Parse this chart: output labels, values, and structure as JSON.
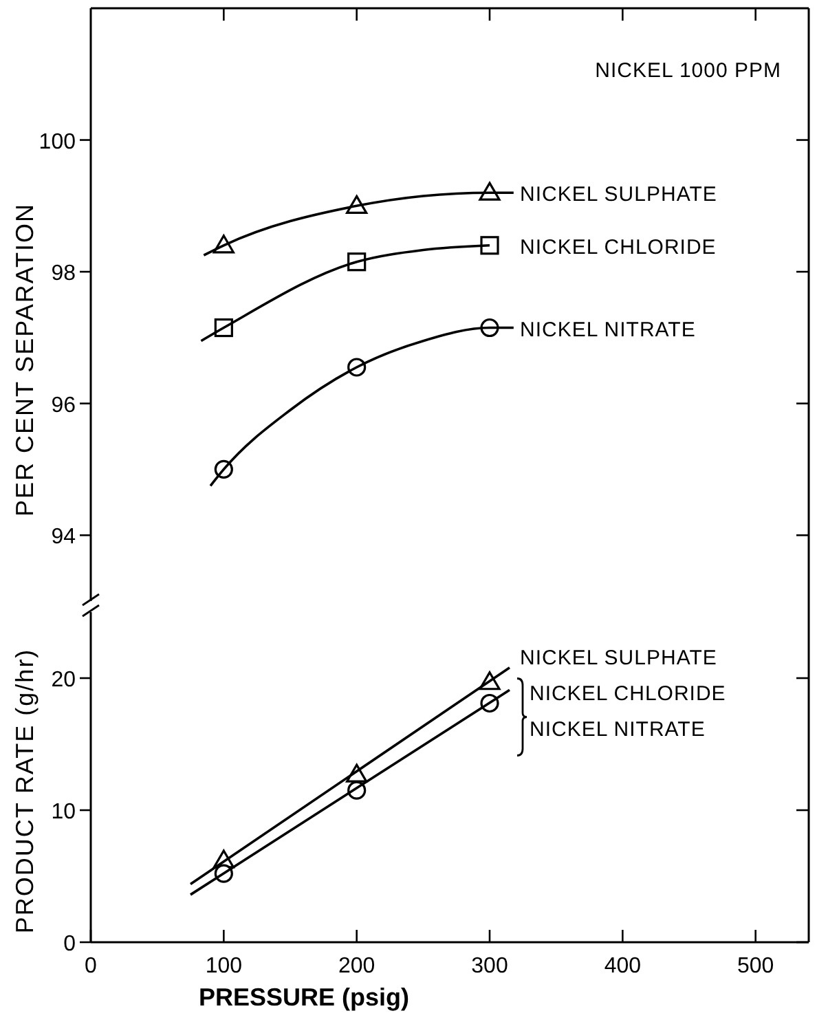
{
  "chart_data": [
    {
      "type": "line",
      "ylabel": "PER CENT SEPARATION",
      "annotations": [
        "NICKEL 1000 PPM"
      ],
      "xlim": [
        0,
        540
      ],
      "xticks": [
        100,
        200,
        300,
        400,
        500
      ],
      "ylim": [
        93,
        102
      ],
      "yticks": [
        94,
        96,
        98,
        100
      ],
      "tick_labels": "y",
      "grid": false,
      "series": [
        {
          "name": "NICKEL SULPHATE",
          "type": "scatter",
          "marker": "triangle",
          "color": "#000000",
          "x": [
            100,
            200,
            300
          ],
          "values": [
            98.4,
            99.0,
            99.2
          ]
        },
        {
          "name": "NICKEL CHLORIDE",
          "type": "scatter",
          "marker": "square",
          "color": "#000000",
          "x": [
            100,
            200,
            300
          ],
          "values": [
            97.15,
            98.15,
            98.4
          ]
        },
        {
          "name": "NICKEL NITRATE",
          "type": "scatter",
          "marker": "circle",
          "color": "#000000",
          "x": [
            100,
            200,
            300
          ],
          "values": [
            95.0,
            96.55,
            97.15
          ]
        },
        {
          "color": "#000000",
          "x": [
            85,
            100,
            200,
            250,
            300,
            318
          ],
          "values": [
            98.25,
            98.4,
            99.0,
            99.15,
            99.2,
            99.2
          ]
        },
        {
          "color": "#000000",
          "x": [
            83,
            100,
            200,
            250,
            300
          ],
          "values": [
            96.95,
            97.15,
            98.15,
            98.33,
            98.4
          ]
        },
        {
          "color": "#000000",
          "x": [
            90,
            100,
            150,
            200,
            250,
            300,
            318
          ],
          "values": [
            94.75,
            95.0,
            95.9,
            96.55,
            96.95,
            97.15,
            97.15
          ]
        }
      ]
    },
    {
      "type": "line",
      "xlabel": "PRESSURE (psig)",
      "ylabel": "PRODUCT RATE (g/hr)",
      "annotations": [
        {
          "text": "NICKEL CHLORIDE",
          "x": 300,
          "y": 18.1
        },
        {
          "text": "NICKEL NITRATE",
          "x": 300,
          "y": 18.1
        }
      ],
      "xlim": [
        0,
        540
      ],
      "xticks": [
        0,
        100,
        200,
        300,
        400,
        500
      ],
      "ylim": [
        0,
        25
      ],
      "yticks": [
        0,
        10,
        20
      ],
      "grid": false,
      "series": [
        {
          "name": "NICKEL SULPHATE",
          "type": "scatter",
          "marker": "triangle",
          "color": "#000000",
          "x": [
            100,
            200,
            300
          ],
          "values": [
            6.2,
            12.7,
            19.7
          ]
        },
        {
          "type": "scatter",
          "marker": "circle",
          "color": "#000000",
          "x": [
            100,
            200,
            300
          ],
          "values": [
            5.2,
            11.5,
            18.1
          ]
        },
        {
          "color": "#000000",
          "x": [
            75,
            315
          ],
          "values": [
            4.4,
            20.8
          ]
        },
        {
          "color": "#000000",
          "x": [
            75,
            315
          ],
          "values": [
            3.6,
            19.1
          ]
        }
      ]
    }
  ]
}
